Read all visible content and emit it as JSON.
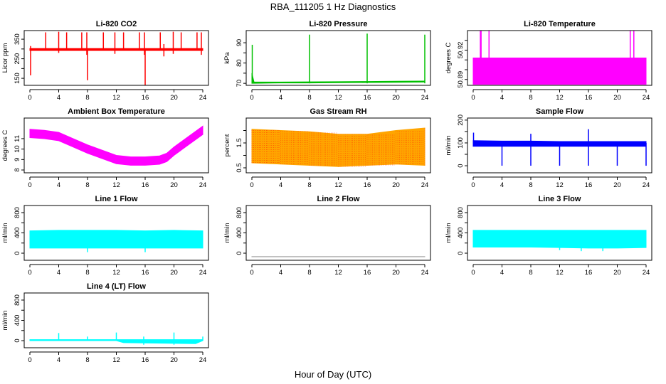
{
  "chart_data": {
    "type": "multi-panel line",
    "title": "RBA_111205  1 Hz Diagnostics",
    "xlabel": "Hour of Day (UTC)",
    "xlim": [
      0,
      24
    ],
    "xticks": [
      "0",
      "4",
      "8",
      "12",
      "16",
      "20",
      "24"
    ],
    "panels": [
      {
        "title": "Li-820 CO2",
        "ylabel": "Licor ppm",
        "color": "#ff0000",
        "ylim": [
          114,
          394
        ],
        "yticks": [
          {
            "v": 150,
            "l": "150"
          },
          {
            "v": 200,
            "l": ""
          },
          {
            "v": 250,
            "l": "250"
          },
          {
            "v": 300,
            "l": ""
          },
          {
            "v": 350,
            "l": "350"
          }
        ],
        "x": [
          0,
          4,
          8,
          12,
          16,
          20,
          24
        ],
        "lower": [
          292,
          292,
          292,
          292,
          292,
          292,
          292
        ],
        "upper": [
          302,
          302,
          302,
          302,
          302,
          302,
          302
        ],
        "spikes": [
          [
            0.1,
            165,
            315
          ],
          [
            2.2,
            300,
            385
          ],
          [
            4.0,
            280,
            388
          ],
          [
            5.1,
            300,
            385
          ],
          [
            7.2,
            300,
            385
          ],
          [
            7.9,
            270,
            385
          ],
          [
            8.0,
            140,
            300
          ],
          [
            10.2,
            300,
            385
          ],
          [
            11.8,
            275,
            385
          ],
          [
            13.0,
            300,
            385
          ],
          [
            15.2,
            300,
            385
          ],
          [
            15.9,
            270,
            385
          ],
          [
            16.0,
            115,
            300
          ],
          [
            18.1,
            300,
            385
          ],
          [
            18.6,
            262,
            325
          ],
          [
            19.9,
            275,
            388
          ],
          [
            21.0,
            300,
            385
          ],
          [
            23.2,
            300,
            385
          ],
          [
            23.8,
            270,
            385
          ]
        ]
      },
      {
        "title": "Li-820 Pressure",
        "ylabel": "kPa",
        "color": "#00c000",
        "ylim": [
          69,
          96
        ],
        "yticks": [
          {
            "v": 70,
            "l": "70"
          },
          {
            "v": 75,
            "l": ""
          },
          {
            "v": 80,
            "l": "80"
          },
          {
            "v": 85,
            "l": ""
          },
          {
            "v": 90,
            "l": "90"
          }
        ],
        "x": [
          0,
          0.3,
          4,
          8,
          12,
          16,
          20,
          24
        ],
        "lower": [
          70,
          70,
          70.2,
          70.2,
          70.3,
          70.4,
          70.5,
          70.6
        ],
        "upper": [
          75,
          70.6,
          70.6,
          70.7,
          70.8,
          70.9,
          71,
          71.1
        ],
        "spikes": [
          [
            0.05,
            70,
            89
          ],
          [
            8.0,
            70,
            94
          ],
          [
            16.0,
            70,
            94.5
          ],
          [
            24.0,
            70,
            94
          ]
        ]
      },
      {
        "title": "Li-820 Temperature",
        "ylabel": "degrees C",
        "color": "#ff00ff",
        "ylim": [
          50.884,
          50.94
        ],
        "yticks": [
          {
            "v": 50.89,
            "l": "50.89"
          },
          {
            "v": 50.9,
            "l": ""
          },
          {
            "v": 50.91,
            "l": ""
          },
          {
            "v": 50.92,
            "l": "50.92"
          },
          {
            "v": 50.93,
            "l": ""
          }
        ],
        "x": [
          0,
          24
        ],
        "lower": [
          50.885,
          50.885
        ],
        "upper": [
          50.912,
          50.912
        ],
        "spikes": [
          [
            1.0,
            50.91,
            50.94
          ],
          [
            1.1,
            50.91,
            50.94
          ],
          [
            2.2,
            50.91,
            50.94
          ],
          [
            21.8,
            50.91,
            50.94
          ],
          [
            22.3,
            50.91,
            50.94
          ]
        ]
      },
      {
        "title": "Ambient Box Temperature",
        "ylabel": "degrees C",
        "color": "#ff00ff",
        "ylim": [
          7.73,
          12.97
        ],
        "yticks": [
          {
            "v": 8,
            "l": "8"
          },
          {
            "v": 9,
            "l": "9"
          },
          {
            "v": 10,
            "l": "10"
          },
          {
            "v": 11,
            "l": "11"
          }
        ],
        "x": [
          0,
          2,
          4,
          6,
          8,
          10,
          12,
          14,
          16,
          18,
          19,
          20,
          22,
          24
        ],
        "lower": [
          11.1,
          11.0,
          10.8,
          10.2,
          9.6,
          9.1,
          8.6,
          8.45,
          8.45,
          8.55,
          8.8,
          9.4,
          10.4,
          11.4
        ],
        "upper": [
          11.9,
          11.8,
          11.6,
          11.0,
          10.4,
          9.9,
          9.4,
          9.25,
          9.25,
          9.35,
          9.6,
          10.2,
          11.2,
          12.2
        ],
        "spikes": []
      },
      {
        "title": "Gas Stream RH",
        "ylabel": "percent",
        "color": "#ffa500",
        "ylim": [
          0.3,
          2.5
        ],
        "yticks": [
          {
            "v": 0.5,
            "l": "0.5"
          },
          {
            "v": 1.0,
            "l": ""
          },
          {
            "v": 1.5,
            "l": "1.5"
          },
          {
            "v": 2.0,
            "l": ""
          }
        ],
        "x": [
          0,
          4,
          8,
          12,
          16,
          20,
          24
        ],
        "lower": [
          0.7,
          0.65,
          0.6,
          0.55,
          0.6,
          0.65,
          0.6
        ],
        "upper": [
          2.05,
          2.0,
          1.95,
          1.85,
          1.85,
          2.0,
          2.1
        ],
        "spikes": []
      },
      {
        "title": "Sample Flow",
        "ylabel": "ml/min",
        "color": "#0000ff",
        "ylim": [
          -31,
          209
        ],
        "yticks": [
          {
            "v": 0,
            "l": "0"
          },
          {
            "v": 50,
            "l": ""
          },
          {
            "v": 100,
            "l": "100"
          },
          {
            "v": 150,
            "l": ""
          },
          {
            "v": 200,
            "l": "200"
          }
        ],
        "x": [
          0,
          4,
          8,
          12,
          16,
          20,
          24
        ],
        "lower": [
          85,
          85,
          85,
          85,
          85,
          85,
          85
        ],
        "upper": [
          110,
          108,
          108,
          106,
          106,
          106,
          106
        ],
        "spikes": [
          [
            0.05,
            85,
            145
          ],
          [
            4.0,
            0,
            100
          ],
          [
            8.0,
            0,
            140
          ],
          [
            12.0,
            0,
            100
          ],
          [
            16.0,
            0,
            160
          ],
          [
            20.0,
            0,
            100
          ],
          [
            24.0,
            0,
            100
          ]
        ]
      },
      {
        "title": "Line 1 Flow",
        "ylabel": "ml/min",
        "color": "#00ffff",
        "ylim": [
          -140,
          940
        ],
        "yticks": [
          {
            "v": 0,
            "l": "0"
          },
          {
            "v": 200,
            "l": ""
          },
          {
            "v": 400,
            "l": "400"
          },
          {
            "v": 600,
            "l": ""
          },
          {
            "v": 800,
            "l": "800"
          }
        ],
        "x": [
          0,
          4,
          8,
          12,
          16,
          20,
          24
        ],
        "lower": [
          100,
          100,
          100,
          100,
          100,
          100,
          100
        ],
        "upper": [
          440,
          450,
          450,
          450,
          440,
          450,
          440
        ],
        "spikes": [
          [
            8.0,
            20,
            400
          ],
          [
            16.0,
            20,
            400
          ]
        ]
      },
      {
        "title": "Line 2 Flow",
        "ylabel": "ml/min",
        "color": "#aaaaaa",
        "ylim": [
          -140,
          940
        ],
        "yticks": [
          {
            "v": 0,
            "l": "0"
          },
          {
            "v": 200,
            "l": ""
          },
          {
            "v": 400,
            "l": "400"
          },
          {
            "v": 600,
            "l": ""
          },
          {
            "v": 800,
            "l": "800"
          }
        ],
        "x": [
          0,
          24
        ],
        "lower": [
          -72,
          -72
        ],
        "upper": [
          -66,
          -66
        ],
        "spikes": []
      },
      {
        "title": "Line 3 Flow",
        "ylabel": "ml/min",
        "color": "#00ffff",
        "ylim": [
          -140,
          940
        ],
        "yticks": [
          {
            "v": 0,
            "l": "0"
          },
          {
            "v": 200,
            "l": ""
          },
          {
            "v": 400,
            "l": "400"
          },
          {
            "v": 600,
            "l": ""
          },
          {
            "v": 800,
            "l": "800"
          }
        ],
        "x": [
          0,
          4,
          8,
          12,
          16,
          20,
          24
        ],
        "lower": [
          120,
          120,
          120,
          110,
          100,
          100,
          110
        ],
        "upper": [
          450,
          450,
          450,
          450,
          450,
          450,
          450
        ],
        "spikes": [
          [
            12,
            60,
            120
          ],
          [
            15,
            40,
            120
          ],
          [
            18,
            40,
            120
          ]
        ]
      },
      {
        "title": "Line 4 (LT) Flow",
        "ylabel": "ml/min",
        "color": "#00ffff",
        "ylim": [
          -140,
          940
        ],
        "yticks": [
          {
            "v": 0,
            "l": "0"
          },
          {
            "v": 200,
            "l": ""
          },
          {
            "v": 400,
            "l": "400"
          },
          {
            "v": 600,
            "l": ""
          },
          {
            "v": 800,
            "l": "800"
          }
        ],
        "x": [
          0,
          12,
          13,
          23,
          24
        ],
        "lower": [
          0,
          0,
          -40,
          -60,
          0
        ],
        "upper": [
          20,
          20,
          20,
          20,
          20
        ],
        "spikes": [
          [
            4.0,
            0,
            150
          ],
          [
            8.0,
            0,
            80
          ],
          [
            12.0,
            0,
            160
          ],
          [
            15.8,
            -80,
            80
          ],
          [
            20.0,
            -80,
            160
          ],
          [
            24.0,
            0,
            80
          ]
        ]
      }
    ]
  }
}
